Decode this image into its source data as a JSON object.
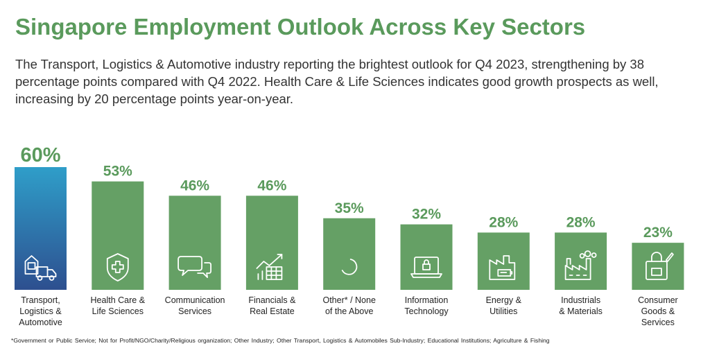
{
  "header": {
    "title": "Singapore Employment Outlook Across Key Sectors",
    "subtitle": "The Transport, Logistics & Automotive industry reporting the brightest outlook for Q4 2023, strengthening by 38 percentage points compared with Q4 2022. Health Care & Life Sciences indicates good growth prospects as well, increasing by 20 percentage points year-on-year."
  },
  "chart_data": {
    "type": "bar",
    "categories": [
      [
        "Transport,",
        "Logistics &",
        "Automotive"
      ],
      [
        "Health Care &",
        "Life Sciences"
      ],
      [
        "Communication",
        "Services"
      ],
      [
        "Financials &",
        "Real Estate"
      ],
      [
        "Other* / None",
        "of the Above"
      ],
      [
        "Information",
        "Technology"
      ],
      [
        "Energy &",
        "Utilities"
      ],
      [
        "Industrials",
        "& Materials"
      ],
      [
        "Consumer",
        "Goods &",
        "Services"
      ]
    ],
    "values": [
      60,
      53,
      46,
      46,
      35,
      32,
      28,
      28,
      23
    ],
    "value_labels": [
      "60%",
      "53%",
      "46%",
      "46%",
      "35%",
      "32%",
      "28%",
      "28%",
      "23%"
    ],
    "icons": [
      "truck-warehouse-icon",
      "shield-plus-icon",
      "chat-bubbles-icon",
      "chart-calculator-icon",
      "loading-circle-icon",
      "laptop-lock-icon",
      "factory-battery-icon",
      "factory-icon",
      "shopping-bag-icon"
    ],
    "ylim": [
      0,
      60
    ],
    "colors": {
      "bar": "#65a065",
      "highlight_top": "#2f9ec9",
      "highlight_bottom": "#2d4f8f",
      "label": "#5a9a5c"
    }
  },
  "footnote": "*Government or Public Service; Not for Profit/NGO/Charity/Religious  organization; Other Industry; Other Transport, Logistics & Automobiles Sub-Industry; Educational Institutions; Agriculture & Fishing"
}
